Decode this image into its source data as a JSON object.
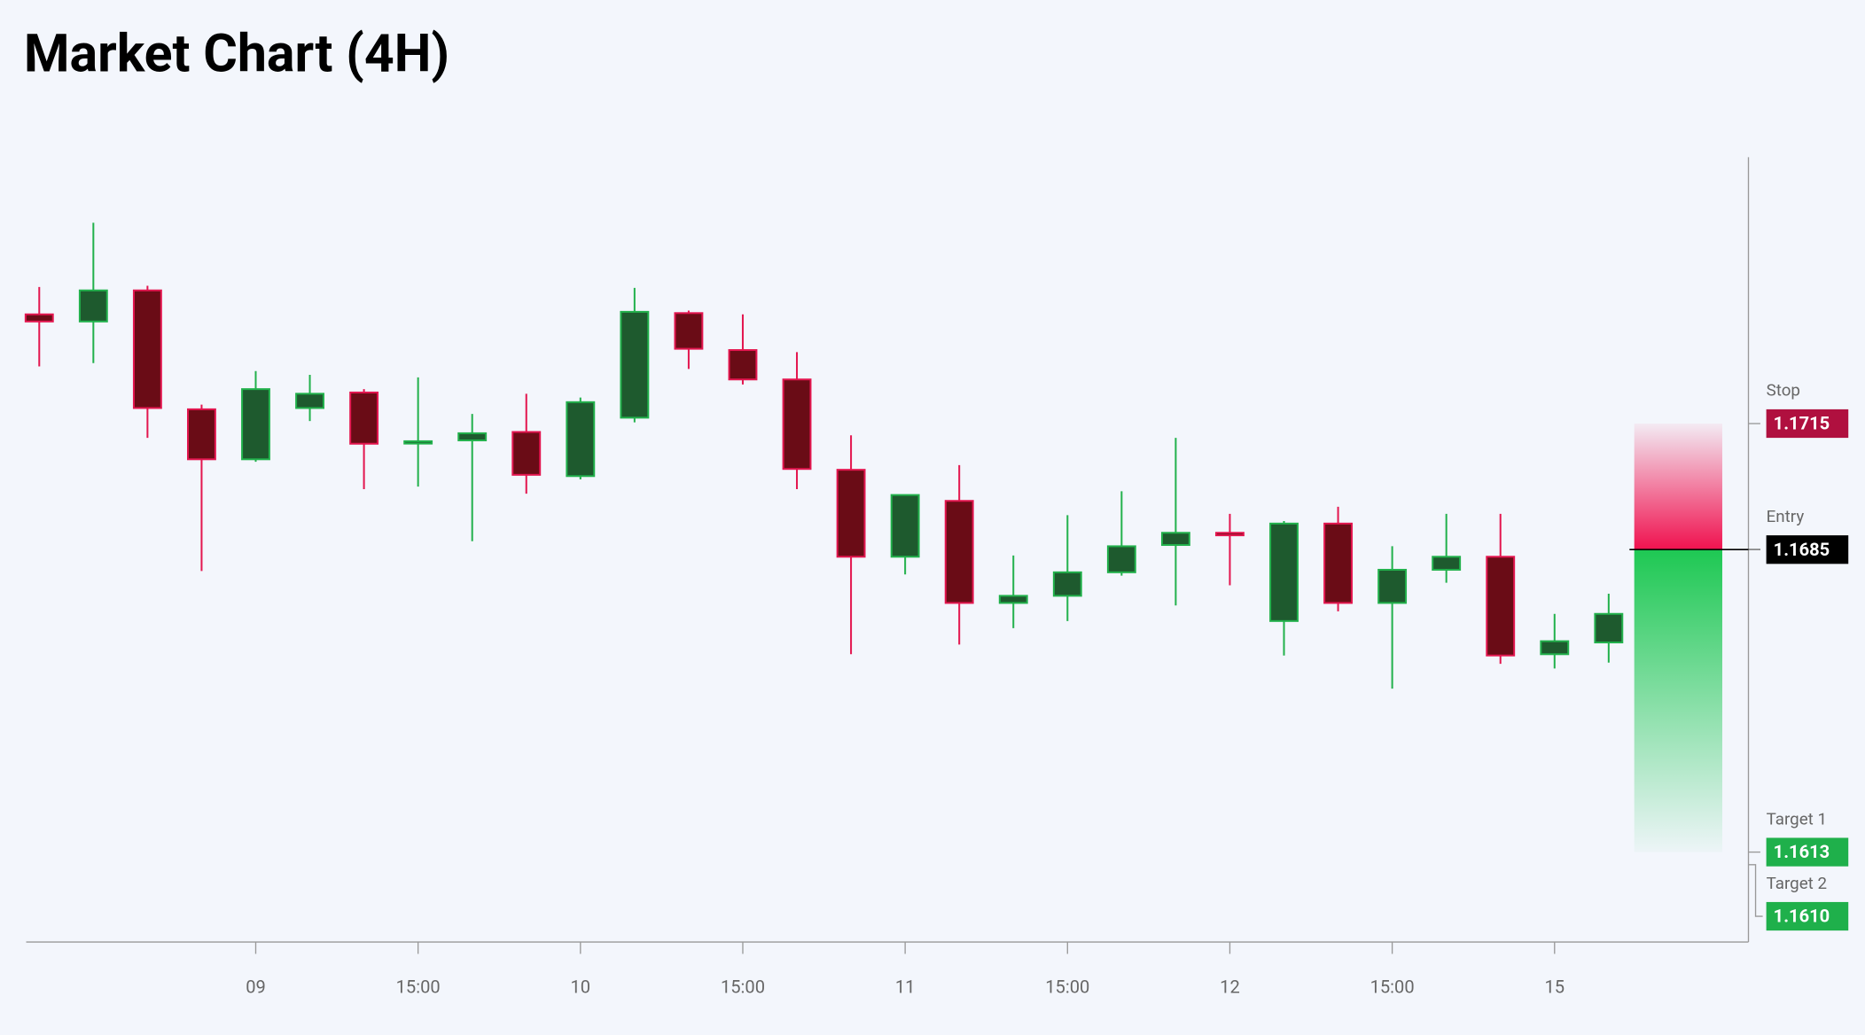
{
  "chart_data": {
    "type": "candlestick",
    "title": "Market Chart (4H)",
    "categories": [
      null,
      null,
      null,
      null,
      "09",
      null,
      null,
      "15:00",
      null,
      null,
      "10",
      null,
      null,
      "15:00",
      null,
      null,
      "11",
      null,
      null,
      "15:00",
      null,
      null,
      "12",
      null,
      null,
      "15:00",
      null,
      null,
      "15",
      null
    ],
    "open": [
      1.1741,
      1.17393,
      1.17467,
      1.17184,
      1.17065,
      1.17187,
      1.17224,
      1.17105,
      1.1711,
      1.1713,
      1.17025,
      1.17164,
      1.17413,
      1.17325,
      1.17255,
      1.1704,
      1.16833,
      1.16966,
      1.16723,
      1.1674,
      1.16796,
      1.16861,
      1.1689,
      1.1668,
      1.16912,
      1.16723,
      1.16802,
      1.16833,
      1.16601,
      1.16629
    ],
    "high": [
      1.17475,
      1.17628,
      1.17478,
      1.17195,
      1.17275,
      1.17266,
      1.17232,
      1.1726,
      1.17173,
      1.17221,
      1.17212,
      1.17473,
      1.17419,
      1.1741,
      1.1732,
      1.17122,
      1.1698,
      1.17051,
      1.16836,
      1.16932,
      1.16989,
      1.17116,
      1.16935,
      1.16918,
      1.16952,
      1.16858,
      1.16935,
      1.16935,
      1.16697,
      1.16745
    ],
    "low": [
      1.17286,
      1.17294,
      1.17116,
      1.16799,
      1.17059,
      1.17156,
      1.16994,
      1.17,
      1.1687,
      1.16983,
      1.17017,
      1.17153,
      1.1728,
      1.17243,
      1.16994,
      1.16601,
      1.16791,
      1.16624,
      1.16663,
      1.1668,
      1.16788,
      1.16717,
      1.16765,
      1.16598,
      1.16703,
      1.16519,
      1.16771,
      1.16578,
      1.16567,
      1.16581
    ],
    "close": [
      1.17393,
      1.17467,
      1.17187,
      1.17065,
      1.17232,
      1.17221,
      1.17102,
      1.17108,
      1.17127,
      1.17028,
      1.17201,
      1.17416,
      1.17328,
      1.17255,
      1.17042,
      1.16833,
      1.1698,
      1.16723,
      1.1674,
      1.16796,
      1.16858,
      1.1689,
      1.16884,
      1.16912,
      1.16723,
      1.16802,
      1.16833,
      1.16598,
      1.16632,
      1.16697
    ],
    "up_color": "#1e5a2e",
    "up_border": "#22b14c",
    "down_color": "#6a0c16",
    "down_border": "#e3164f",
    "ylim": [
      1.15916,
      1.17784
    ],
    "levels": [
      {
        "name": "Stop",
        "value": 1.1715,
        "color": "#b0103f"
      },
      {
        "name": "Entry",
        "value": 1.1685,
        "color": "#000000"
      },
      {
        "name": "Target 1",
        "value": 1.1613,
        "color": "#1fb04b"
      },
      {
        "name": "Target 2",
        "value": 1.161,
        "label": "1.1610",
        "color": "#1fb04b"
      }
    ]
  }
}
